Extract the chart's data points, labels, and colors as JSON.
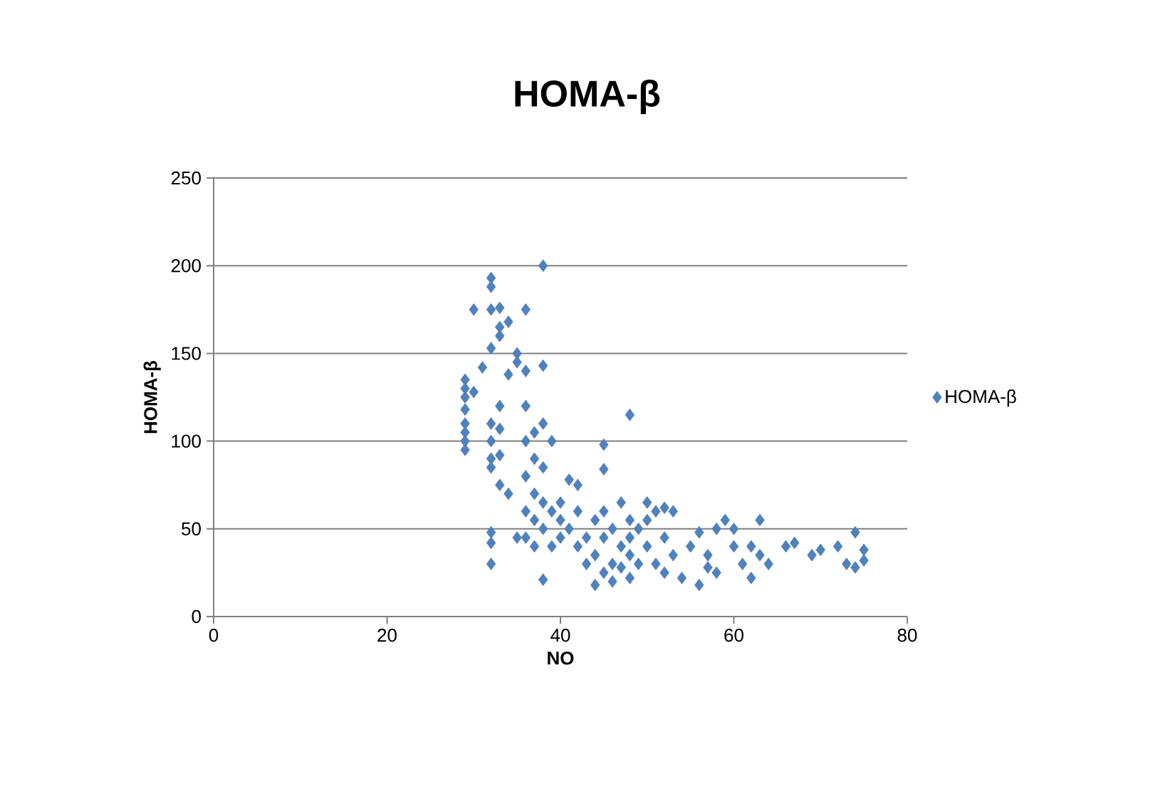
{
  "chart_data": {
    "type": "scatter",
    "title": "HOMA-β",
    "xlabel": "NO",
    "ylabel": "HOMA-β",
    "xlim": [
      0,
      80
    ],
    "ylim": [
      0,
      250
    ],
    "xticks": [
      0,
      20,
      40,
      60,
      80
    ],
    "yticks": [
      0,
      50,
      100,
      150,
      200,
      250
    ],
    "grid": "y",
    "legend": "right",
    "marker": "diamond",
    "series": [
      {
        "name": "HOMA-β",
        "color": "#4f81bd",
        "x": [
          29,
          29,
          29,
          29,
          29,
          29,
          29,
          29,
          30,
          30,
          31,
          32,
          32,
          32,
          32,
          32,
          32,
          32,
          32,
          32,
          32,
          32,
          33,
          33,
          33,
          33,
          33,
          33,
          33,
          34,
          34,
          34,
          35,
          35,
          35,
          36,
          36,
          36,
          36,
          36,
          36,
          36,
          37,
          37,
          37,
          37,
          37,
          38,
          38,
          38,
          38,
          38,
          38,
          38,
          39,
          39,
          39,
          40,
          40,
          40,
          41,
          41,
          42,
          42,
          42,
          43,
          43,
          44,
          44,
          44,
          45,
          45,
          45,
          45,
          45,
          46,
          46,
          46,
          47,
          47,
          47,
          48,
          48,
          48,
          48,
          48,
          49,
          49,
          50,
          50,
          50,
          51,
          51,
          52,
          52,
          52,
          53,
          53,
          54,
          55,
          56,
          56,
          57,
          57,
          58,
          58,
          59,
          60,
          60,
          61,
          62,
          62,
          63,
          63,
          64,
          66,
          67,
          69,
          70,
          72,
          73,
          74,
          74,
          75,
          75
        ],
        "values": [
          95,
          100,
          105,
          110,
          118,
          125,
          130,
          135,
          128,
          175,
          142,
          193,
          188,
          175,
          153,
          110,
          100,
          90,
          85,
          48,
          30,
          42,
          165,
          160,
          176,
          120,
          107,
          75,
          92,
          168,
          138,
          70,
          150,
          145,
          45,
          175,
          140,
          120,
          100,
          80,
          60,
          45,
          105,
          90,
          70,
          55,
          40,
          200,
          143,
          110,
          85,
          65,
          50,
          21,
          100,
          60,
          40,
          55,
          45,
          65,
          78,
          50,
          75,
          60,
          40,
          45,
          30,
          55,
          35,
          18,
          98,
          84,
          60,
          45,
          25,
          50,
          30,
          20,
          65,
          40,
          28,
          115,
          55,
          45,
          35,
          22,
          50,
          30,
          65,
          55,
          40,
          60,
          30,
          62,
          45,
          25,
          60,
          35,
          22,
          40,
          48,
          18,
          35,
          28,
          50,
          25,
          55,
          50,
          40,
          30,
          22,
          40,
          55,
          35,
          30,
          40,
          42,
          35,
          38,
          40,
          30,
          48,
          28,
          38,
          32
        ]
      }
    ]
  }
}
